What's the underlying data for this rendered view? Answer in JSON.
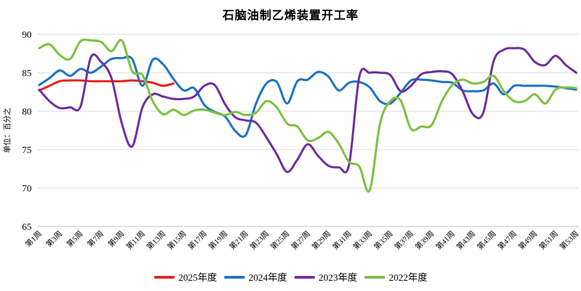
{
  "title": "石脑油制乙烯装置开工率",
  "y_axis": {
    "unit_label": "单位：百分之",
    "ticks": [
      90,
      85,
      80,
      75,
      70,
      65
    ]
  },
  "x_axis": {
    "labels": [
      "第1周",
      "第3周",
      "第5周",
      "第7周",
      "第9周",
      "第11周",
      "第13周",
      "第15周",
      "第17周",
      "第19周",
      "第21周",
      "第23周",
      "第25周",
      "第27周",
      "第29周",
      "第31周",
      "第33周",
      "第35周",
      "第37周",
      "第39周",
      "第41周",
      "第43周",
      "第45周",
      "第47周",
      "第49周",
      "第51周",
      "第53周"
    ]
  },
  "legend": [
    "2025年度",
    "2024年度",
    "2023年度",
    "2022年度"
  ],
  "colors": {
    "grid": "#d9d9d9",
    "axis_line": "#c0c0c0",
    "text": "#000000"
  },
  "chart_data": {
    "type": "line",
    "title": "石脑油制乙烯装置开工率",
    "ylabel": "单位：百分之",
    "ylim": [
      65,
      90
    ],
    "weeks_total": 53,
    "grid": "horizontal",
    "legend_position": "bottom",
    "line_style": "smooth",
    "series": [
      {
        "name": "2025年度",
        "color": "#e8231c",
        "start_week": 1,
        "values": [
          82.7,
          83.3,
          83.9,
          84.0,
          84.0,
          83.9,
          83.9,
          83.9,
          83.9,
          84.0,
          83.9,
          83.7,
          83.3,
          83.6
        ]
      },
      {
        "name": "2024年度",
        "color": "#1f74c2",
        "start_week": 1,
        "values": [
          83.4,
          84.3,
          85.3,
          84.6,
          85.5,
          85.0,
          85.8,
          86.8,
          86.9,
          86.8,
          83.3,
          86.7,
          86.1,
          84.2,
          82.7,
          83.0,
          80.8,
          79.9,
          79.3,
          77.4,
          76.9,
          81.0,
          83.6,
          83.8,
          81.0,
          83.9,
          84.1,
          85.1,
          84.5,
          82.7,
          83.7,
          83.8,
          83.1,
          81.3,
          81.0,
          82.4,
          84.0,
          84.1,
          84.0,
          83.8,
          83.7,
          82.7,
          82.6,
          82.7,
          83.6,
          82.2,
          83.3,
          83.3,
          83.3,
          83.3,
          83.2,
          83.0,
          82.8
        ]
      },
      {
        "name": "2023年度",
        "color": "#7030a0",
        "start_week": 1,
        "values": [
          82.8,
          81.3,
          80.4,
          80.5,
          80.6,
          87.0,
          86.4,
          84.3,
          78.4,
          75.4,
          80.5,
          82.2,
          81.9,
          81.6,
          81.6,
          81.9,
          83.3,
          83.4,
          80.9,
          79.2,
          78.8,
          78.5,
          76.6,
          74.4,
          72.1,
          73.7,
          75.7,
          74.2,
          72.9,
          72.7,
          73.0,
          84.5,
          85.0,
          85.0,
          84.7,
          82.6,
          83.3,
          84.8,
          85.1,
          85.2,
          84.8,
          82.6,
          79.6,
          79.8,
          86.5,
          88.0,
          88.2,
          88.0,
          86.4,
          86.0,
          87.2,
          86.0,
          85.0
        ]
      },
      {
        "name": "2022年度",
        "color": "#7dc242",
        "start_week": 1,
        "values": [
          88.2,
          88.7,
          87.3,
          86.8,
          89.1,
          89.2,
          89.0,
          87.8,
          89.2,
          85.2,
          84.7,
          81.3,
          79.6,
          80.2,
          79.5,
          80.1,
          80.2,
          79.8,
          79.5,
          79.9,
          79.5,
          79.8,
          81.3,
          80.5,
          78.4,
          78.0,
          76.2,
          76.5,
          77.3,
          75.8,
          73.4,
          72.8,
          69.7,
          78.4,
          81.3,
          81.4,
          77.7,
          78.0,
          78.2,
          81.3,
          83.4,
          84.1,
          83.6,
          83.8,
          84.6,
          82.6,
          81.3,
          81.3,
          82.2,
          81.0,
          82.8,
          83.1,
          83.0
        ]
      }
    ]
  }
}
